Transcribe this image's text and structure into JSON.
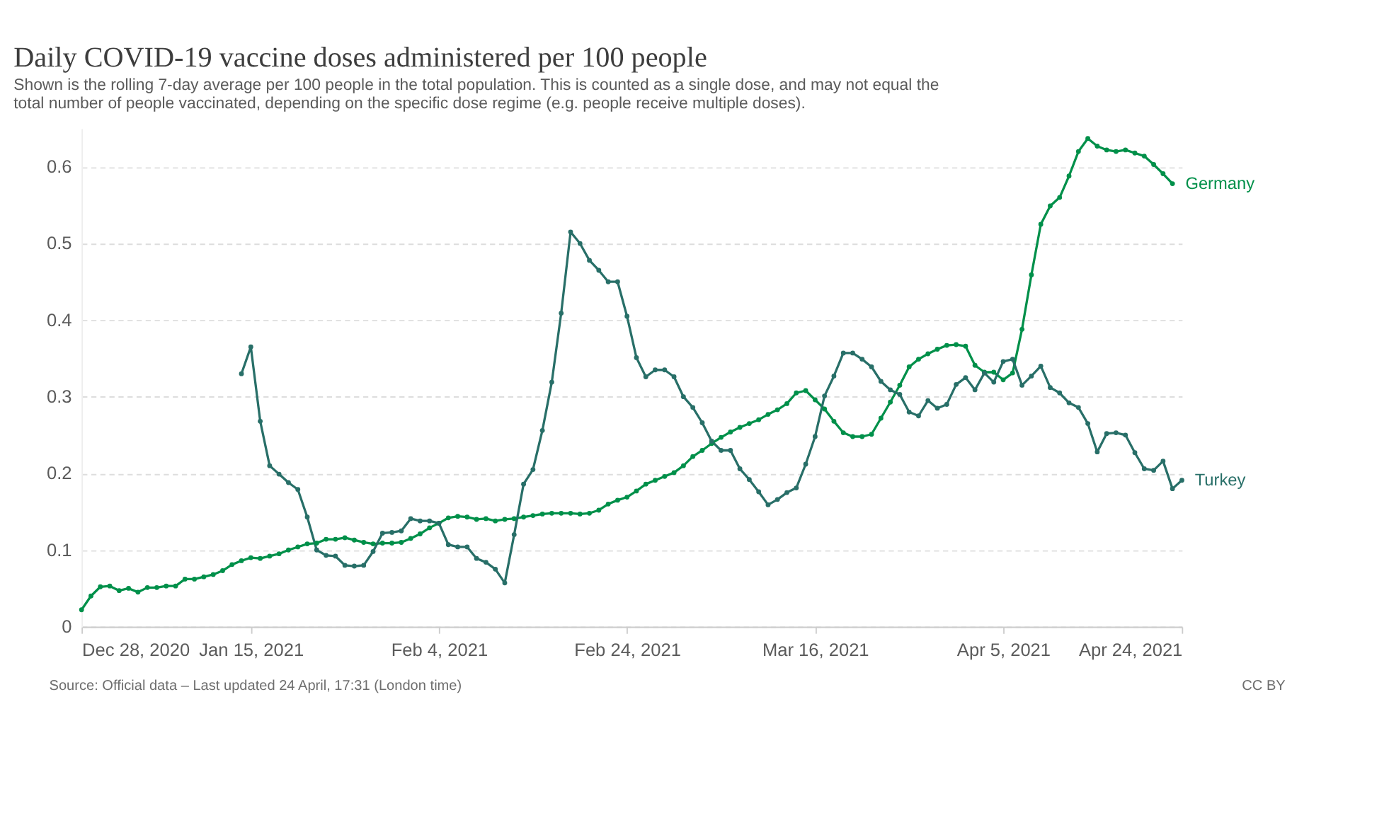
{
  "chart_data": {
    "type": "line",
    "title": "Daily COVID-19 vaccine doses administered per 100 people",
    "subtitle": "Shown is the rolling 7-day average per 100 people in the total population. This is counted as a single dose, and may not equal the total number of people vaccinated, depending on the specific dose regime (e.g. people receive multiple doses).",
    "x": [
      "2020-12-28",
      "2020-12-29",
      "2020-12-30",
      "2020-12-31",
      "2021-01-01",
      "2021-01-02",
      "2021-01-03",
      "2021-01-04",
      "2021-01-05",
      "2021-01-06",
      "2021-01-07",
      "2021-01-08",
      "2021-01-09",
      "2021-01-10",
      "2021-01-11",
      "2021-01-12",
      "2021-01-13",
      "2021-01-14",
      "2021-01-15",
      "2021-01-16",
      "2021-01-17",
      "2021-01-18",
      "2021-01-19",
      "2021-01-20",
      "2021-01-21",
      "2021-01-22",
      "2021-01-23",
      "2021-01-24",
      "2021-01-25",
      "2021-01-26",
      "2021-01-27",
      "2021-01-28",
      "2021-01-29",
      "2021-01-30",
      "2021-01-31",
      "2021-02-01",
      "2021-02-02",
      "2021-02-03",
      "2021-02-04",
      "2021-02-05",
      "2021-02-06",
      "2021-02-07",
      "2021-02-08",
      "2021-02-09",
      "2021-02-10",
      "2021-02-11",
      "2021-02-12",
      "2021-02-13",
      "2021-02-14",
      "2021-02-15",
      "2021-02-16",
      "2021-02-17",
      "2021-02-18",
      "2021-02-19",
      "2021-02-20",
      "2021-02-21",
      "2021-02-22",
      "2021-02-23",
      "2021-02-24",
      "2021-02-25",
      "2021-02-26",
      "2021-02-27",
      "2021-02-28",
      "2021-03-01",
      "2021-03-02",
      "2021-03-03",
      "2021-03-04",
      "2021-03-05",
      "2021-03-06",
      "2021-03-07",
      "2021-03-08",
      "2021-03-09",
      "2021-03-10",
      "2021-03-11",
      "2021-03-12",
      "2021-03-13",
      "2021-03-14",
      "2021-03-15",
      "2021-03-16",
      "2021-03-17",
      "2021-03-18",
      "2021-03-19",
      "2021-03-20",
      "2021-03-21",
      "2021-03-22",
      "2021-03-23",
      "2021-03-24",
      "2021-03-25",
      "2021-03-26",
      "2021-03-27",
      "2021-03-28",
      "2021-03-29",
      "2021-03-30",
      "2021-03-31",
      "2021-04-01",
      "2021-04-02",
      "2021-04-03",
      "2021-04-04",
      "2021-04-05",
      "2021-04-06",
      "2021-04-07",
      "2021-04-08",
      "2021-04-09",
      "2021-04-10",
      "2021-04-11",
      "2021-04-12",
      "2021-04-13",
      "2021-04-14",
      "2021-04-15",
      "2021-04-16",
      "2021-04-17",
      "2021-04-18",
      "2021-04-19",
      "2021-04-20",
      "2021-04-21",
      "2021-04-22",
      "2021-04-23",
      "2021-04-24"
    ],
    "series": [
      {
        "name": "Germany",
        "color": "#00904a",
        "values": [
          0.022,
          0.04,
          0.052,
          0.053,
          0.047,
          0.05,
          0.045,
          0.051,
          0.051,
          0.053,
          0.053,
          0.062,
          0.062,
          0.065,
          0.068,
          0.073,
          0.081,
          0.086,
          0.09,
          0.089,
          0.092,
          0.095,
          0.1,
          0.104,
          0.108,
          0.109,
          0.114,
          0.114,
          0.116,
          0.113,
          0.11,
          0.108,
          0.109,
          0.109,
          0.11,
          0.115,
          0.121,
          0.129,
          0.135,
          0.142,
          0.144,
          0.143,
          0.14,
          0.141,
          0.138,
          0.14,
          0.141,
          0.143,
          0.145,
          0.147,
          0.148,
          0.148,
          0.148,
          0.147,
          0.148,
          0.152,
          0.16,
          0.165,
          0.169,
          0.177,
          0.186,
          0.191,
          0.196,
          0.201,
          0.21,
          0.222,
          0.23,
          0.239,
          0.247,
          0.254,
          0.26,
          0.265,
          0.27,
          0.277,
          0.283,
          0.291,
          0.305,
          0.308,
          0.296,
          0.284,
          0.268,
          0.253,
          0.248,
          0.248,
          0.251,
          0.272,
          0.293,
          0.315,
          0.339,
          0.349,
          0.356,
          0.362,
          0.367,
          0.368,
          0.366,
          0.341,
          0.332,
          0.332,
          0.322,
          0.331,
          0.388,
          0.459,
          0.525,
          0.549,
          0.56,
          0.588,
          0.62,
          0.637,
          0.627,
          0.622,
          0.62,
          0.622,
          0.618,
          0.614,
          0.603,
          0.591,
          0.578,
          null
        ]
      },
      {
        "name": "Turkey",
        "color": "#286f68",
        "values": [
          null,
          null,
          null,
          null,
          null,
          null,
          null,
          null,
          null,
          null,
          null,
          null,
          null,
          null,
          null,
          null,
          null,
          0.33,
          0.365,
          0.268,
          0.21,
          0.199,
          0.188,
          0.179,
          0.143,
          0.1,
          0.093,
          0.092,
          0.08,
          0.079,
          0.08,
          0.098,
          0.122,
          0.123,
          0.125,
          0.141,
          0.138,
          0.138,
          0.135,
          0.107,
          0.104,
          0.104,
          0.089,
          0.084,
          0.075,
          0.057,
          0.12,
          0.186,
          0.205,
          0.256,
          0.319,
          0.409,
          0.515,
          0.5,
          0.478,
          0.465,
          0.45,
          0.45,
          0.405,
          0.351,
          0.326,
          0.335,
          0.335,
          0.326,
          0.3,
          0.286,
          0.266,
          0.242,
          0.23,
          0.23,
          0.206,
          0.192,
          0.176,
          0.159,
          0.166,
          0.175,
          0.181,
          0.212,
          0.248,
          0.301,
          0.327,
          0.357,
          0.357,
          0.349,
          0.339,
          0.32,
          0.309,
          0.303,
          0.28,
          0.275,
          0.295,
          0.285,
          0.29,
          0.316,
          0.325,
          0.309,
          0.331,
          0.319,
          0.346,
          0.349,
          0.315,
          0.327,
          0.34,
          0.312,
          0.305,
          0.292,
          0.286,
          0.265,
          0.228,
          0.252,
          0.253,
          0.25,
          0.227,
          0.206,
          0.204,
          0.216,
          0.18,
          0.191
        ]
      }
    ],
    "xlim": [
      "2020-12-28",
      "2021-04-24"
    ],
    "xticks": [
      {
        "value": "2020-12-28",
        "label": "Dec 28, 2020"
      },
      {
        "value": "2021-01-15",
        "label": "Jan 15, 2021"
      },
      {
        "value": "2021-02-04",
        "label": "Feb 4, 2021"
      },
      {
        "value": "2021-02-24",
        "label": "Feb 24, 2021"
      },
      {
        "value": "2021-03-16",
        "label": "Mar 16, 2021"
      },
      {
        "value": "2021-04-05",
        "label": "Apr 5, 2021"
      },
      {
        "value": "2021-04-24",
        "label": "Apr 24, 2021"
      }
    ],
    "ylim": [
      0,
      0.65
    ],
    "yticks": [
      0,
      0.1,
      0.2,
      0.3,
      0.4,
      0.5,
      0.6
    ],
    "grid": "y",
    "legend": false,
    "marker": "circle",
    "line_style": "solid",
    "annotations": [
      "Source: Official data – Last updated 24 April, 17:31 (London time)",
      "CC BY"
    ]
  }
}
